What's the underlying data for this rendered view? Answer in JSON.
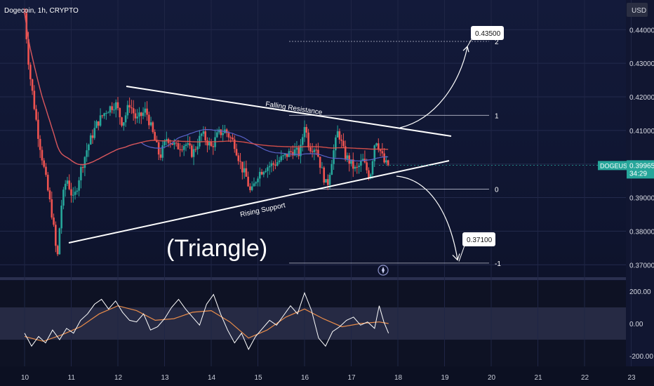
{
  "header": {
    "symbol": "Dogecoin, 1h, CRYPTO",
    "currency": "USD"
  },
  "price_tag": {
    "symbol": "DOGEUSD",
    "price": "0.39965",
    "countdown": "34:29"
  },
  "annotations": {
    "title": "(Triangle)",
    "resistance": "Falling Resistance",
    "support": "Rising Support",
    "target_up": "0.43500",
    "target_down": "0.37100",
    "fib_2": "2",
    "fib_1": "1",
    "fib_0": "0",
    "fib_m1": "-1"
  },
  "colors": {
    "up": "#26a69a",
    "down": "#ef5350",
    "ma_long": "#e5534b",
    "ma_short": "#5a63c8",
    "osc": "#ffffff",
    "osc_signal": "#e98c4a"
  },
  "chart_data": [
    {
      "type": "candlestick",
      "title": "Dogecoin, 1h, CRYPTO",
      "yticks": [
        "0.44000",
        "0.43000",
        "0.42000",
        "0.41000",
        "0.40000",
        "0.39000",
        "0.38000",
        "0.37000"
      ],
      "ylim": [
        0.3665,
        0.448
      ],
      "xticks": [
        "10",
        "11",
        "12",
        "13",
        "14",
        "15",
        "16",
        "17",
        "18",
        "19",
        "20",
        "21",
        "22",
        "23"
      ],
      "last_price": 0.39965,
      "targets": {
        "up": 0.435,
        "down": 0.371
      },
      "fib_levels": [
        {
          "level": "2",
          "price": 0.4365
        },
        {
          "level": "1",
          "price": 0.4145
        },
        {
          "level": "0",
          "price": 0.3925
        },
        {
          "level": "-1",
          "price": 0.3705
        }
      ],
      "anchors": [
        [
          10.0,
          0.445
        ],
        [
          10.1,
          0.428
        ],
        [
          10.3,
          0.408
        ],
        [
          10.45,
          0.396
        ],
        [
          10.6,
          0.384
        ],
        [
          10.7,
          0.371
        ],
        [
          10.78,
          0.387
        ],
        [
          10.9,
          0.396
        ],
        [
          11.05,
          0.389
        ],
        [
          11.2,
          0.398
        ],
        [
          11.35,
          0.405
        ],
        [
          11.55,
          0.412
        ],
        [
          11.75,
          0.416
        ],
        [
          11.95,
          0.418
        ],
        [
          12.1,
          0.412
        ],
        [
          12.25,
          0.418
        ],
        [
          12.4,
          0.413
        ],
        [
          12.6,
          0.416
        ],
        [
          12.75,
          0.409
        ],
        [
          12.9,
          0.402
        ],
        [
          13.05,
          0.408
        ],
        [
          13.25,
          0.405
        ],
        [
          13.45,
          0.406
        ],
        [
          13.6,
          0.403
        ],
        [
          13.8,
          0.409
        ],
        [
          14.0,
          0.405
        ],
        [
          14.15,
          0.409
        ],
        [
          14.3,
          0.41
        ],
        [
          14.5,
          0.406
        ],
        [
          14.65,
          0.399
        ],
        [
          14.75,
          0.396
        ],
        [
          14.85,
          0.391
        ],
        [
          15.0,
          0.397
        ],
        [
          15.15,
          0.399
        ],
        [
          15.35,
          0.4
        ],
        [
          15.55,
          0.402
        ],
        [
          15.75,
          0.404
        ],
        [
          15.9,
          0.403
        ],
        [
          16.0,
          0.412
        ],
        [
          16.1,
          0.405
        ],
        [
          16.25,
          0.405
        ],
        [
          16.35,
          0.399
        ],
        [
          16.48,
          0.393
        ],
        [
          16.58,
          0.401
        ],
        [
          16.72,
          0.41
        ],
        [
          16.85,
          0.403
        ],
        [
          16.95,
          0.401
        ],
        [
          17.1,
          0.398
        ],
        [
          17.25,
          0.401
        ],
        [
          17.4,
          0.396
        ],
        [
          17.52,
          0.408
        ],
        [
          17.62,
          0.404
        ],
        [
          17.72,
          0.4
        ],
        [
          17.8,
          0.39965
        ]
      ]
    },
    {
      "type": "line",
      "title": "oscillator",
      "yticks": [
        "200.00",
        "0.00",
        "-200.00"
      ],
      "ylim": [
        -265,
        265
      ],
      "xlim": [
        10.0,
        17.8
      ],
      "series": [
        {
          "name": "",
          "x": [
            10.0,
            10.15,
            10.3,
            10.45,
            10.6,
            10.75,
            10.9,
            11.05,
            11.2,
            11.35,
            11.5,
            11.65,
            11.8,
            11.95,
            12.1,
            12.25,
            12.4,
            12.55,
            12.7,
            12.85,
            13.0,
            13.15,
            13.3,
            13.45,
            13.6,
            13.75,
            13.9,
            14.05,
            14.2,
            14.35,
            14.5,
            14.65,
            14.8,
            14.95,
            15.1,
            15.25,
            15.4,
            15.55,
            15.7,
            15.85,
            16.0,
            16.15,
            16.3,
            16.45,
            16.6,
            16.75,
            16.9,
            17.05,
            17.2,
            17.35,
            17.5,
            17.6,
            17.7,
            17.8
          ],
          "values": [
            -60,
            -140,
            -80,
            -120,
            -40,
            -100,
            -30,
            -60,
            20,
            60,
            120,
            150,
            90,
            140,
            70,
            20,
            10,
            60,
            -40,
            -20,
            30,
            100,
            150,
            90,
            40,
            -10,
            120,
            180,
            60,
            -40,
            -120,
            -60,
            -160,
            -80,
            -30,
            20,
            -10,
            50,
            110,
            60,
            190,
            80,
            -90,
            -140,
            -50,
            -20,
            20,
            40,
            -10,
            10,
            -30,
            110,
            10,
            -60
          ]
        },
        {
          "name": "",
          "x": [
            10.0,
            10.4,
            10.8,
            11.2,
            11.6,
            12.0,
            12.4,
            12.8,
            13.2,
            13.6,
            14.0,
            14.4,
            14.8,
            15.2,
            15.6,
            16.0,
            16.4,
            16.8,
            17.2,
            17.6,
            17.8
          ],
          "values": [
            -80,
            -110,
            -70,
            -20,
            60,
            110,
            80,
            20,
            30,
            70,
            80,
            10,
            -90,
            -40,
            40,
            90,
            30,
            -20,
            0,
            10,
            0
          ]
        }
      ]
    }
  ]
}
